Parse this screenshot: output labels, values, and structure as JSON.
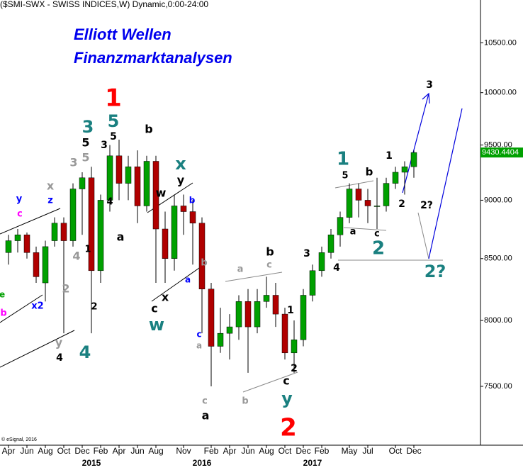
{
  "chart_data": {
    "type": "candlestick",
    "header": "($SMI-SWX - SWISS INDICES,W) Dynamic,0:00-24:00",
    "title": "Elliott Wellen",
    "subtitle": "Finanzmarktanalysen",
    "copyright": "© eSignal, 2016",
    "log_scale": true,
    "up_color": "#00a000",
    "down_color": "#b00000",
    "x": [
      "2014-04",
      "2014-05",
      "2014-06",
      "2014-07",
      "2014-08",
      "2014-09",
      "2014-10",
      "2014-11",
      "2014-12",
      "2015-01",
      "2015-02",
      "2015-03",
      "2015-04",
      "2015-05",
      "2015-06",
      "2015-07",
      "2015-08",
      "2015-09",
      "2015-10",
      "2015-11",
      "2015-12",
      "2016-01",
      "2016-02",
      "2016-03",
      "2016-04",
      "2016-05",
      "2016-06",
      "2016-07",
      "2016-08",
      "2016-09",
      "2016-10",
      "2016-11",
      "2016-12",
      "2017-01",
      "2017-02",
      "2017-03",
      "2017-04",
      "2017-05",
      "2017-06",
      "2017-07",
      "2017-08",
      "2017-09",
      "2017-10",
      "2017-11",
      "2017-12"
    ],
    "open": [
      8550,
      8650,
      8700,
      8550,
      8300,
      8650,
      8800,
      8650,
      9100,
      9200,
      8400,
      9000,
      9400,
      9150,
      9300,
      8950,
      9350,
      8750,
      8500,
      8950,
      8900,
      8800,
      8250,
      7800,
      7900,
      7950,
      8150,
      7950,
      8150,
      8200,
      8050,
      7750,
      7850,
      8200,
      8400,
      8550,
      8700,
      8850,
      9100,
      9000,
      8950,
      8950,
      9150,
      9250,
      9300
    ],
    "high": [
      8700,
      8750,
      8720,
      8600,
      8650,
      8850,
      8850,
      9150,
      9250,
      9300,
      9050,
      9500,
      9550,
      9400,
      9450,
      9400,
      9400,
      8900,
      9050,
      9050,
      9000,
      8850,
      8300,
      8100,
      8050,
      8200,
      8250,
      8250,
      8350,
      8300,
      8100,
      8000,
      8250,
      8450,
      8600,
      8750,
      8900,
      9150,
      9150,
      9100,
      9200,
      9200,
      9300,
      9350,
      9450
    ],
    "low": [
      8450,
      8550,
      8500,
      8300,
      8150,
      8600,
      7900,
      8600,
      8700,
      7900,
      8300,
      8900,
      9000,
      9000,
      8800,
      8900,
      8300,
      8300,
      8400,
      8700,
      8450,
      7900,
      7500,
      7750,
      7700,
      7850,
      7600,
      7900,
      8100,
      7950,
      7700,
      7600,
      7800,
      8150,
      8350,
      8500,
      8600,
      8800,
      8850,
      8800,
      8750,
      8900,
      9100,
      9050,
      9200
    ],
    "close": [
      8650,
      8700,
      8550,
      8350,
      8600,
      8800,
      8650,
      9100,
      9200,
      8400,
      9000,
      9400,
      9150,
      9300,
      8950,
      9350,
      8750,
      8500,
      8950,
      8900,
      8800,
      8250,
      7800,
      7900,
      7950,
      8150,
      7950,
      8150,
      8200,
      8050,
      7750,
      7850,
      8200,
      8400,
      8550,
      8700,
      8850,
      9100,
      9000,
      8950,
      8950,
      9150,
      9250,
      9300,
      9430.4404
    ],
    "ylim": [
      7080,
      10950
    ],
    "yticks": [
      {
        "value": 7500,
        "label": "7500.00"
      },
      {
        "value": 8000,
        "label": "8000.00"
      },
      {
        "value": 8500,
        "label": "8500.00"
      },
      {
        "value": 9000,
        "label": "9000.00"
      },
      {
        "value": 9500,
        "label": "9500.00"
      },
      {
        "value": 10000,
        "label": "10000.00"
      },
      {
        "value": 10500,
        "label": "10500.00"
      }
    ],
    "xticks": [
      {
        "value": "2014-04",
        "label": "Apr"
      },
      {
        "value": "2014-06",
        "label": "Jun"
      },
      {
        "value": "2014-08",
        "label": "Aug"
      },
      {
        "value": "2014-10",
        "label": "Oct"
      },
      {
        "value": "2014-12",
        "label": "Dec"
      },
      {
        "value": "2015-02",
        "label": "Feb"
      },
      {
        "value": "2015-04",
        "label": "Apr"
      },
      {
        "value": "2015-06",
        "label": "Jun"
      },
      {
        "value": "2015-08",
        "label": "Aug"
      },
      {
        "value": "2015-11",
        "label": "Nov"
      },
      {
        "value": "2016-02",
        "label": "Feb"
      },
      {
        "value": "2016-04",
        "label": "Apr"
      },
      {
        "value": "2016-06",
        "label": "Jun"
      },
      {
        "value": "2016-08",
        "label": "Aug"
      },
      {
        "value": "2016-10",
        "label": "Oct"
      },
      {
        "value": "2016-12",
        "label": "Dec"
      },
      {
        "value": "2017-02",
        "label": "Feb"
      },
      {
        "value": "2017-05",
        "label": "May"
      },
      {
        "value": "2017-07",
        "label": "Jul"
      },
      {
        "value": "2017-10",
        "label": "Oct"
      },
      {
        "value": "2017-12",
        "label": "Dec"
      }
    ],
    "year_ticks": [
      {
        "value": "2015-01",
        "label": "2015"
      },
      {
        "value": "2016-01",
        "label": "2016"
      },
      {
        "value": "2017-01",
        "label": "2017"
      }
    ],
    "annotations": [
      {
        "text": "1",
        "color": "#ff0000"
      },
      {
        "text": "5",
        "color": "#1a8080"
      },
      {
        "text": "3",
        "color": "#1a8080"
      },
      {
        "text": "5",
        "color": "#000000"
      },
      {
        "text": "b",
        "color": "#000000"
      },
      {
        "text": "3",
        "color": "#000000"
      },
      {
        "text": "5",
        "color": "#000000"
      },
      {
        "text": "5",
        "color": "#999999"
      },
      {
        "text": "3",
        "color": "#999999"
      },
      {
        "text": "x",
        "color": "#1a8080"
      },
      {
        "text": "y",
        "color": "#000000"
      },
      {
        "text": "w",
        "color": "#000000"
      },
      {
        "text": "b",
        "color": "#0000ff"
      },
      {
        "text": "y",
        "color": "#0000ff"
      },
      {
        "text": "c",
        "color": "#ff00ff"
      },
      {
        "text": "x",
        "color": "#999999"
      },
      {
        "text": "z",
        "color": "#0000ff"
      },
      {
        "text": "4",
        "color": "#000000"
      },
      {
        "text": "a",
        "color": "#000000"
      },
      {
        "text": "1",
        "color": "#000000"
      },
      {
        "text": "4",
        "color": "#999999"
      },
      {
        "text": "b",
        "color": "#999999"
      },
      {
        "text": "a",
        "color": "#999999"
      },
      {
        "text": "c",
        "color": "#999999"
      },
      {
        "text": "b",
        "color": "#000000"
      },
      {
        "text": "a",
        "color": "#0000ff"
      },
      {
        "text": "2",
        "color": "#999999"
      },
      {
        "text": "c",
        "color": "#000000"
      },
      {
        "text": "x",
        "color": "#000000"
      },
      {
        "text": "w",
        "color": "#1a8080"
      },
      {
        "text": "x2",
        "color": "#0000ff"
      },
      {
        "text": "b",
        "color": "#ff00ff"
      },
      {
        "text": "e",
        "color": "#00a000"
      },
      {
        "text": "2",
        "color": "#000000"
      },
      {
        "text": "y",
        "color": "#999999"
      },
      {
        "text": "4",
        "color": "#000000"
      },
      {
        "text": "4",
        "color": "#1a8080"
      },
      {
        "text": "c",
        "color": "#0000ff"
      },
      {
        "text": "a",
        "color": "#999999"
      },
      {
        "text": "c",
        "color": "#999999"
      },
      {
        "text": "a",
        "color": "#000000"
      },
      {
        "text": "b",
        "color": "#999999"
      },
      {
        "text": "1",
        "color": "#000000"
      },
      {
        "text": "2",
        "color": "#000000"
      },
      {
        "text": "c",
        "color": "#000000"
      },
      {
        "text": "y",
        "color": "#1a8080"
      },
      {
        "text": "2",
        "color": "#ff0000"
      },
      {
        "text": "3",
        "color": "#000000"
      },
      {
        "text": "4",
        "color": "#000000"
      },
      {
        "text": "1",
        "color": "#1a8080"
      },
      {
        "text": "5",
        "color": "#000000"
      },
      {
        "text": "b",
        "color": "#000000"
      },
      {
        "text": "a",
        "color": "#000000"
      },
      {
        "text": "c",
        "color": "#000000"
      },
      {
        "text": "2",
        "color": "#1a8080"
      },
      {
        "text": "1",
        "color": "#000000"
      },
      {
        "text": "2",
        "color": "#000000"
      },
      {
        "text": "2?",
        "color": "#000000"
      },
      {
        "text": "2?",
        "color": "#1a8080"
      },
      {
        "text": "3",
        "color": "#000000"
      }
    ]
  }
}
